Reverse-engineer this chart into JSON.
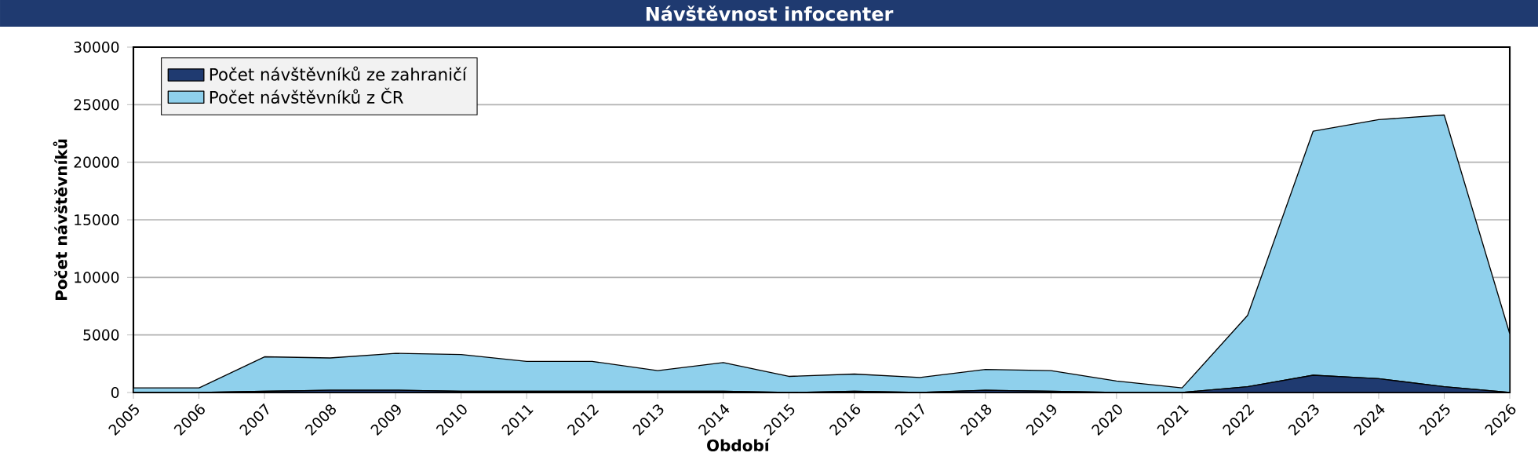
{
  "chart_data": {
    "type": "area",
    "title": "Návštěvnost infocenter",
    "xlabel": "Období",
    "ylabel": "Počet návštěvníků",
    "categories": [
      "2005",
      "2006",
      "2007",
      "2008",
      "2009",
      "2010",
      "2011",
      "2012",
      "2013",
      "2014",
      "2015",
      "2016",
      "2017",
      "2018",
      "2019",
      "2020",
      "2021",
      "2022",
      "2023",
      "2024",
      "2025",
      "2026"
    ],
    "stacked": true,
    "series": [
      {
        "name": "Počet návštěvníků ze zahraničí",
        "color": "#1f3a70",
        "values": [
          0,
          0,
          100,
          200,
          200,
          100,
          100,
          100,
          100,
          100,
          0,
          100,
          0,
          200,
          100,
          0,
          0,
          500,
          1500,
          1200,
          500,
          0
        ]
      },
      {
        "name": "Počet návštěvníků z ČR",
        "color": "#8fd0ec",
        "values": [
          400,
          400,
          3000,
          2800,
          3200,
          3200,
          2600,
          2600,
          1800,
          2500,
          1400,
          1500,
          1300,
          1800,
          1800,
          1000,
          400,
          6200,
          21200,
          22500,
          23600,
          5100
        ]
      }
    ],
    "ylim": [
      0,
      30000
    ],
    "yticks": [
      0,
      5000,
      10000,
      15000,
      20000,
      25000,
      30000
    ],
    "grid": "y",
    "legend": "top left"
  }
}
